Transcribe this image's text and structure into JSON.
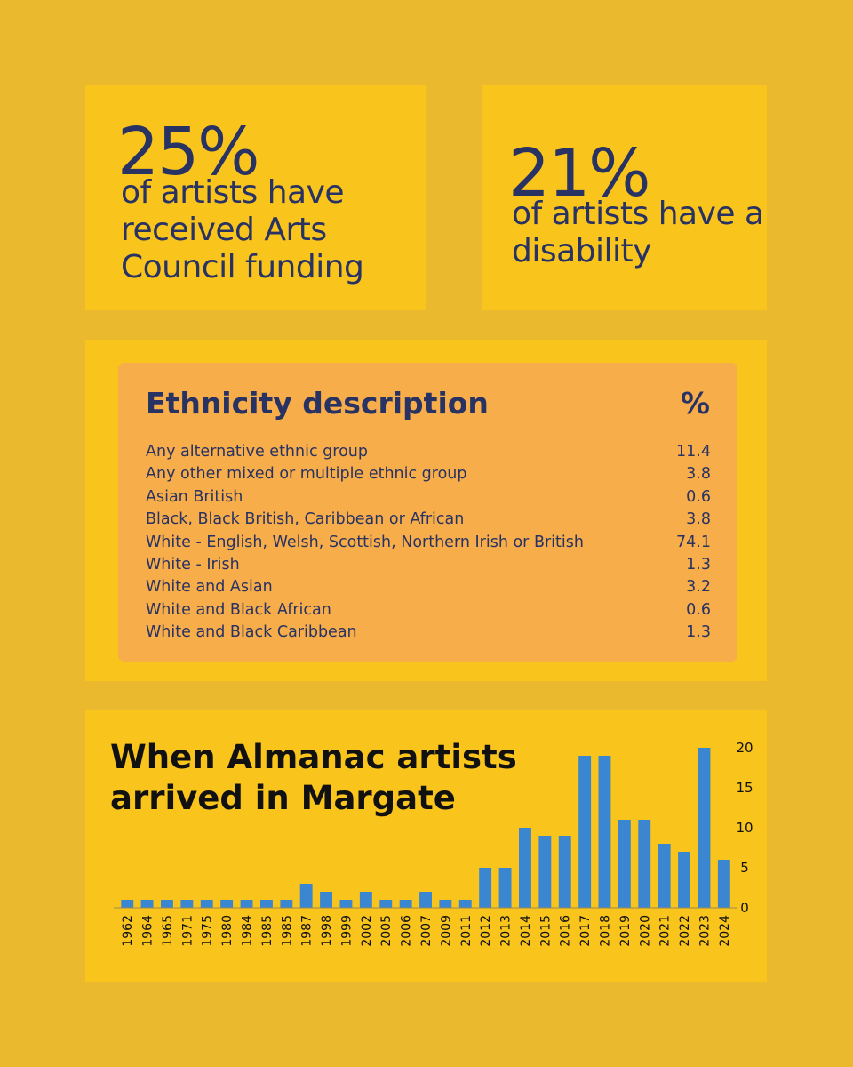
{
  "stats": [
    {
      "value": "25%",
      "text": "of artists have received Arts Council funding"
    },
    {
      "value": "21%",
      "text": "of artists have a disability"
    }
  ],
  "ethnicity": {
    "header_label": "Ethnicity description",
    "header_pct": "%",
    "rows": [
      {
        "label": "Any alternative ethnic group",
        "value": "11.4"
      },
      {
        "label": "Any other mixed or multiple ethnic group",
        "value": "3.8"
      },
      {
        "label": "Asian British",
        "value": "0.6"
      },
      {
        "label": "Black, Black British, Caribbean or African",
        "value": "3.8"
      },
      {
        "label": "White - English, Welsh, Scottish, Northern Irish or British",
        "value": "74.1"
      },
      {
        "label": "White - Irish",
        "value": "1.3"
      },
      {
        "label": "White and Asian",
        "value": "3.2"
      },
      {
        "label": "White and Black African",
        "value": "0.6"
      },
      {
        "label": "White and Black Caribbean",
        "value": "1.3"
      }
    ]
  },
  "chart_data": {
    "type": "bar",
    "title": "When Almanac artists arrived in Margate",
    "xlabel": "",
    "ylabel": "",
    "categories": [
      "1962",
      "1964",
      "1965",
      "1971",
      "1975",
      "1980",
      "1984",
      "1985",
      "1985",
      "1987",
      "1998",
      "1999",
      "2002",
      "2005",
      "2006",
      "2007",
      "2009",
      "2011",
      "2012",
      "2013",
      "2014",
      "2015",
      "2016",
      "2017",
      "2018",
      "2019",
      "2020",
      "2021",
      "2022",
      "2023",
      "2024"
    ],
    "values": [
      1,
      1,
      1,
      1,
      1,
      1,
      1,
      1,
      1,
      3,
      2,
      1,
      2,
      1,
      1,
      2,
      1,
      1,
      5,
      5,
      10,
      9,
      9,
      19,
      19,
      11,
      11,
      8,
      7,
      20,
      6
    ],
    "ylim": [
      0,
      20
    ],
    "yticks": [
      "0",
      "5",
      "10",
      "15",
      "20"
    ],
    "yaxis_position": "right",
    "grid": false,
    "bar_color": "#3b86d0"
  }
}
